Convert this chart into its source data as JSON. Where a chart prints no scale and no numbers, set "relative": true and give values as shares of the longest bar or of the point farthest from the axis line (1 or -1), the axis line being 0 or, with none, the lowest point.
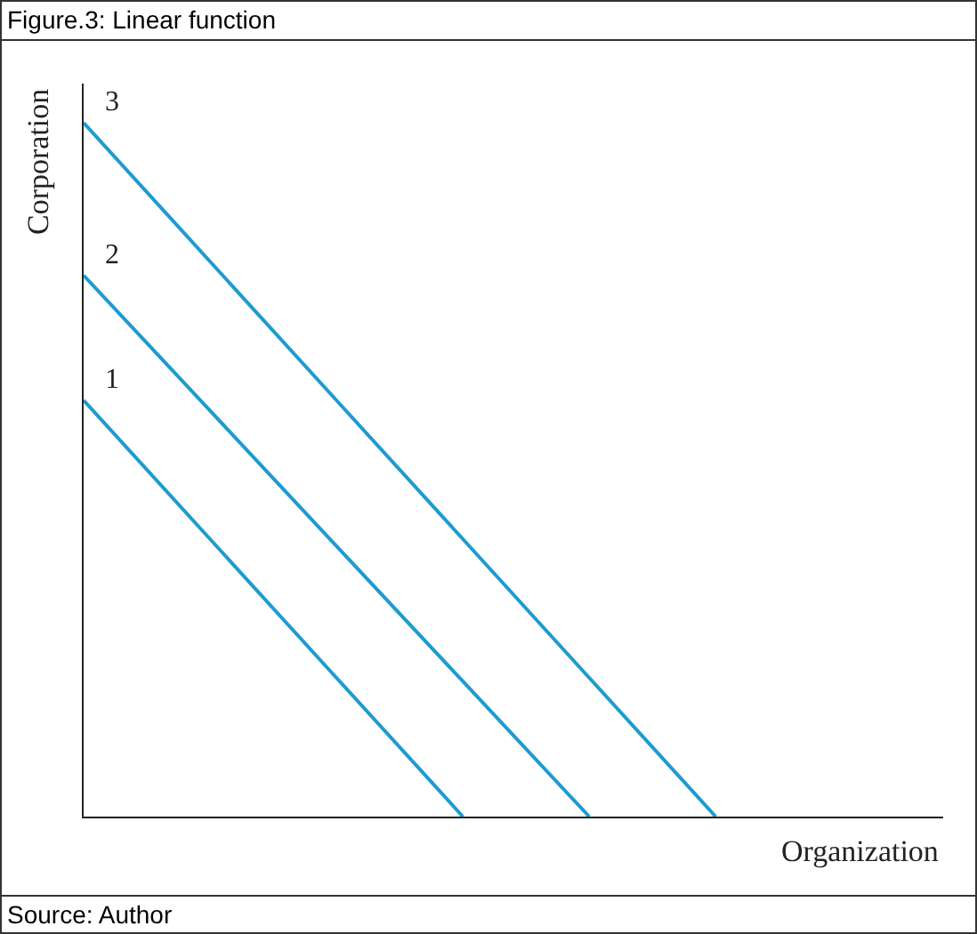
{
  "chart_data": {
    "type": "line",
    "title": "Figure.3: Linear function",
    "xlabel": "Organization",
    "ylabel": "Corporation",
    "relative": true,
    "grid": false,
    "legend": false,
    "marker": "none",
    "line_style": "solid",
    "annotations": [
      "Source: Author"
    ],
    "categories": [
      null,
      null,
      null,
      null,
      null,
      null,
      null
    ],
    "series": [
      {
        "name": "1",
        "color": "#1e9bd0",
        "values": [
          0.6,
          0.4,
          0.2,
          0,
          null,
          null,
          null
        ]
      },
      {
        "name": "2",
        "color": "#1e9bd0",
        "values": [
          0.78,
          0.585,
          0.39,
          0.195,
          0,
          null,
          null
        ]
      },
      {
        "name": "3",
        "color": "#1e9bd0",
        "values": [
          1,
          0.8,
          0.6,
          0.4,
          0.2,
          0,
          null
        ]
      }
    ]
  }
}
